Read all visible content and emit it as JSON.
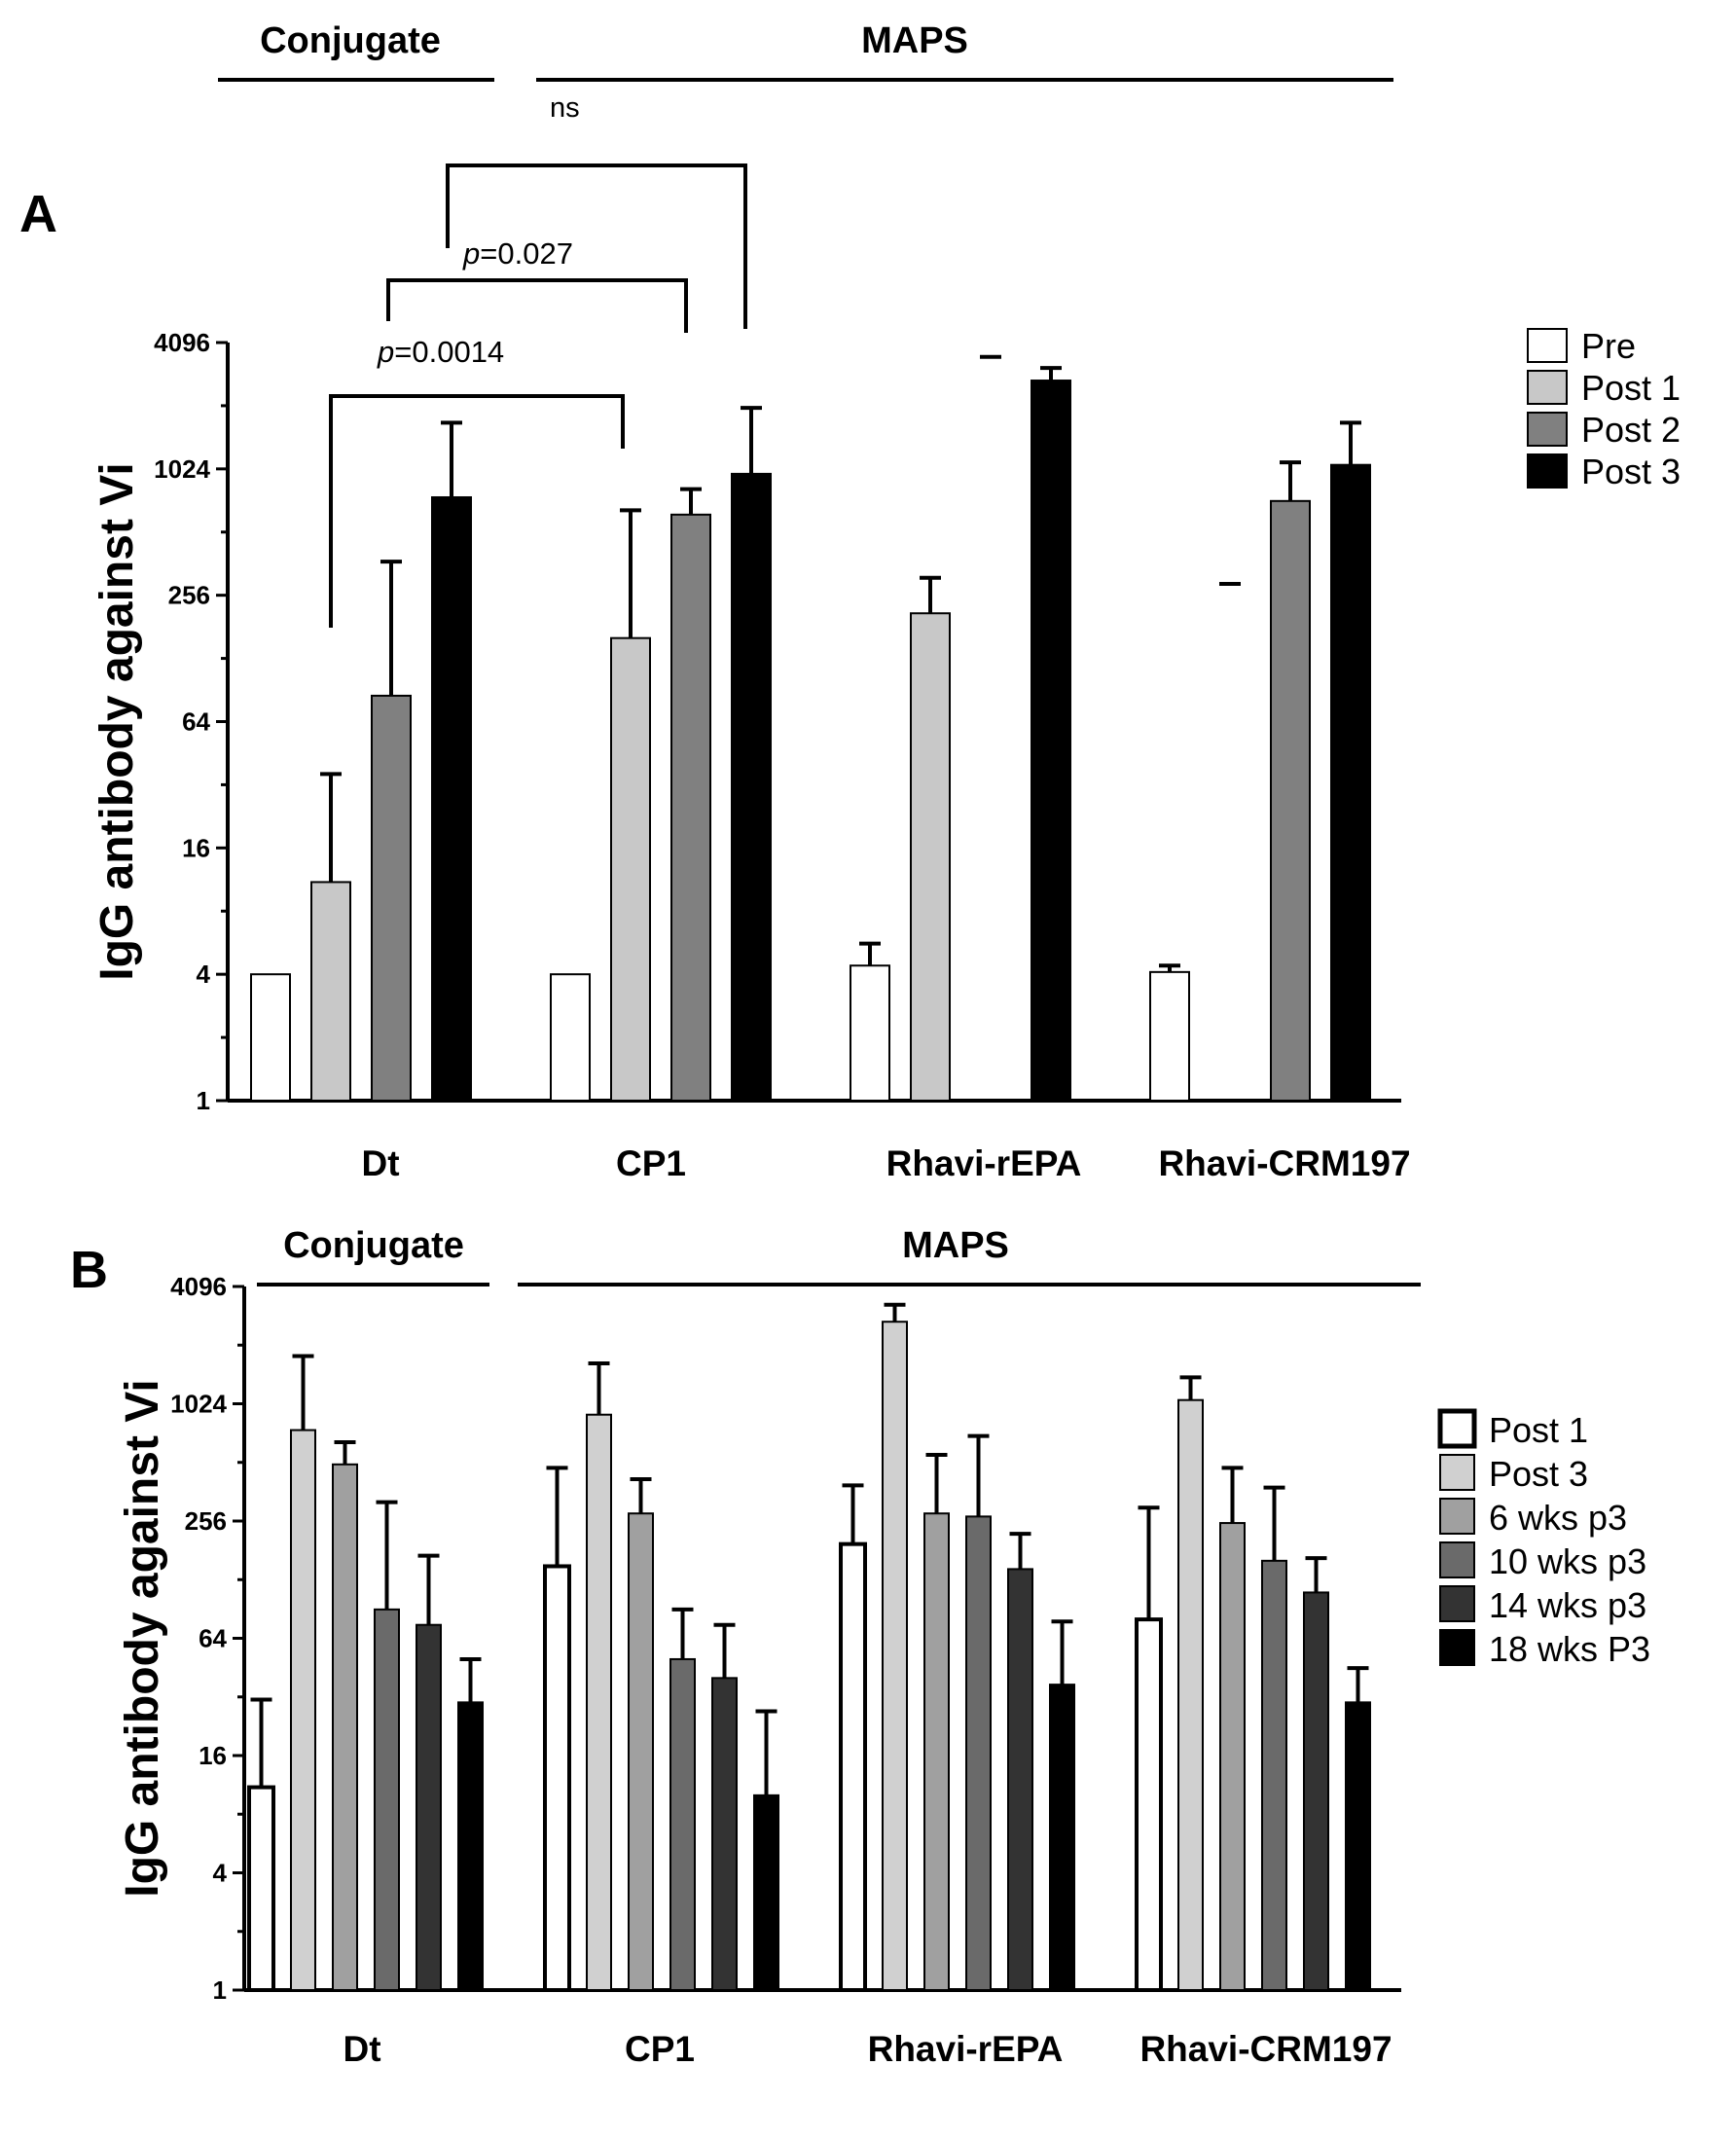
{
  "chart_data": [
    {
      "panel_label": "A",
      "type": "bar",
      "ylabel": "IgG antibody against Vi",
      "y_scale": "log2",
      "ylim": [
        1,
        4096
      ],
      "yticks": [
        "1",
        "4",
        "16",
        "64",
        "256",
        "1024",
        "4096"
      ],
      "categories": [
        "Dt",
        "CP1",
        "Rhavi-rEPA",
        "Rhavi-CRM197"
      ],
      "groups": [
        {
          "label": "Conjugate",
          "categories": [
            "Dt"
          ]
        },
        {
          "label": "MAPS",
          "categories": [
            "CP1",
            "Rhavi-rEPA",
            "Rhavi-CRM197"
          ]
        }
      ],
      "series": [
        {
          "name": "Pre",
          "color": "#ffffff",
          "values": [
            4,
            4,
            4.4,
            4.1
          ],
          "error": [
            null,
            null,
            5.6,
            4.4
          ]
        },
        {
          "name": "Post 1",
          "color": "#c8c8c8",
          "values": [
            11,
            160,
            210,
            null
          ],
          "error": [
            36,
            650,
            310,
            290
          ]
        },
        {
          "name": "Post 2",
          "color": "#808080",
          "values": [
            85,
            620,
            null,
            720
          ],
          "error": [
            370,
            820,
            3500,
            1100
          ]
        },
        {
          "name": "Post 3",
          "color": "#000000",
          "values": [
            750,
            970,
            2700,
            1070
          ],
          "error": [
            1700,
            2000,
            3100,
            1700
          ]
        }
      ],
      "comparisons": [
        {
          "label_italic": "p",
          "label_rest": "=0.0014",
          "from": "Dt",
          "to": "CP1"
        },
        {
          "label_italic": "p",
          "label_rest": "=0.027",
          "from": "Dt",
          "to": "CP1"
        },
        {
          "label_italic": "",
          "label_rest": "ns",
          "from": "Dt",
          "to": "CP1"
        }
      ],
      "legend_position": "top-right"
    },
    {
      "panel_label": "B",
      "type": "bar",
      "ylabel": "IgG antibody against Vi",
      "y_scale": "log2",
      "ylim": [
        1,
        4096
      ],
      "yticks": [
        "1",
        "4",
        "16",
        "64",
        "256",
        "1024",
        "4096"
      ],
      "categories": [
        "Dt",
        "CP1",
        "Rhavi-rEPA",
        "Rhavi-CRM197"
      ],
      "groups": [
        {
          "label": "Conjugate",
          "categories": [
            "Dt"
          ]
        },
        {
          "label": "MAPS",
          "categories": [
            "CP1",
            "Rhavi-rEPA",
            "Rhavi-CRM197"
          ]
        }
      ],
      "series": [
        {
          "name": "Post 1",
          "color": "#ffffff",
          "values": [
            11,
            150,
            195,
            80
          ],
          "error": [
            31,
            480,
            390,
            300
          ]
        },
        {
          "name": "Post 3",
          "color": "#d0d0d0",
          "values": [
            750,
            900,
            2700,
            1070
          ],
          "error": [
            1800,
            1650,
            3300,
            1400
          ]
        },
        {
          "name": "6 wks p3",
          "color": "#a0a0a0",
          "values": [
            500,
            280,
            280,
            250
          ],
          "error": [
            650,
            420,
            560,
            480
          ]
        },
        {
          "name": "10 wks p3",
          "color": "#6a6a6a",
          "values": [
            90,
            50,
            270,
            160
          ],
          "error": [
            320,
            90,
            700,
            380
          ]
        },
        {
          "name": "14 wks p3",
          "color": "#333333",
          "values": [
            75,
            40,
            145,
            110
          ],
          "error": [
            170,
            75,
            220,
            165
          ]
        },
        {
          "name": "18 wks P3",
          "color": "#000000",
          "values": [
            30,
            10,
            37,
            30
          ],
          "error": [
            50,
            27,
            78,
            45
          ]
        }
      ],
      "legend_position": "right"
    }
  ],
  "panelA": {
    "label": "A",
    "group1": "Conjugate",
    "group2": "MAPS",
    "ns": "ns",
    "p1_italic": "p",
    "p1_rest": "=0.0014",
    "p2_italic": "p",
    "p2_rest": "=0.027"
  },
  "panelB": {
    "label": "B",
    "group1": "Conjugate",
    "group2": "MAPS"
  }
}
